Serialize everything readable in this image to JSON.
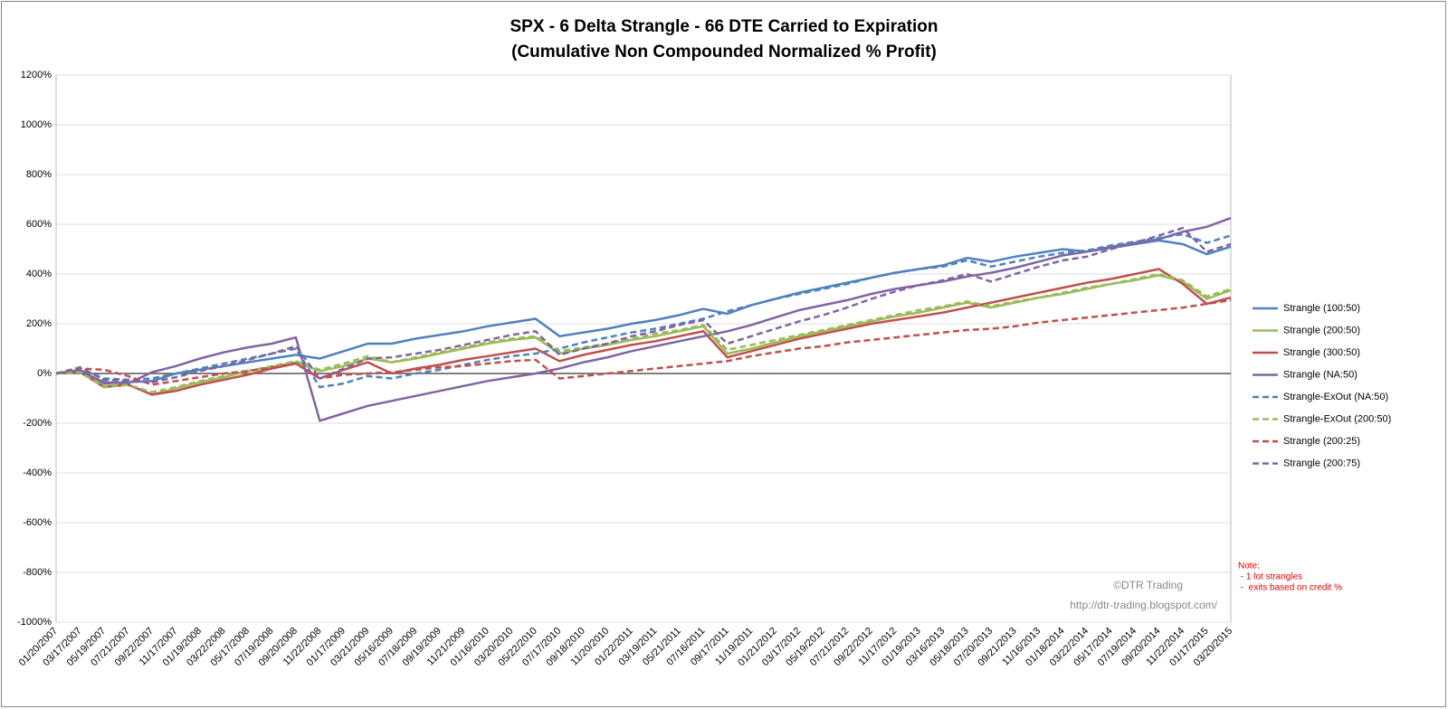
{
  "chart_data": {
    "type": "line",
    "title": [
      "SPX - 6 Delta Strangle - 66 DTE Carried to Expiration",
      "(Cumulative Non Compounded Normalized % Profit)"
    ],
    "categories": [
      "01/20/2007",
      "03/17/2007",
      "05/19/2007",
      "07/21/2007",
      "09/22/2007",
      "11/17/2007",
      "01/19/2008",
      "03/22/2008",
      "05/17/2008",
      "07/19/2008",
      "09/20/2008",
      "11/22/2008",
      "01/17/2009",
      "03/21/2009",
      "05/16/2009",
      "07/18/2009",
      "09/19/2009",
      "11/21/2009",
      "01/16/2010",
      "03/20/2010",
      "05/22/2010",
      "07/17/2010",
      "09/18/2010",
      "11/20/2010",
      "01/22/2011",
      "03/19/2011",
      "05/21/2011",
      "07/16/2011",
      "09/17/2011",
      "11/19/2011",
      "01/21/2012",
      "03/17/2012",
      "05/19/2012",
      "07/21/2012",
      "09/22/2012",
      "11/17/2012",
      "01/19/2013",
      "03/16/2013",
      "05/18/2013",
      "07/20/2013",
      "09/21/2013",
      "11/16/2013",
      "01/18/2014",
      "03/22/2014",
      "05/17/2014",
      "07/19/2014",
      "09/20/2014",
      "11/22/2014",
      "01/17/2015",
      "03/20/2015"
    ],
    "series": [
      {
        "name": "Strangle (100:50)",
        "color": "#4f81bd",
        "dashed": false,
        "values": [
          0,
          15,
          -40,
          -35,
          -30,
          0,
          15,
          30,
          45,
          60,
          75,
          60,
          90,
          120,
          120,
          140,
          155,
          170,
          190,
          205,
          220,
          150,
          165,
          180,
          200,
          215,
          235,
          260,
          240,
          275,
          300,
          325,
          345,
          365,
          385,
          405,
          420,
          435,
          465,
          450,
          470,
          485,
          500,
          490,
          505,
          520,
          535,
          520,
          480,
          510
        ]
      },
      {
        "name": "Strangle (200:50)",
        "color": "#9bbb59",
        "dashed": false,
        "values": [
          0,
          5,
          -50,
          -45,
          -85,
          -60,
          -35,
          -15,
          10,
          25,
          45,
          10,
          30,
          60,
          45,
          60,
          80,
          100,
          120,
          135,
          145,
          80,
          100,
          115,
          135,
          150,
          170,
          190,
          80,
          100,
          125,
          150,
          170,
          190,
          210,
          230,
          245,
          265,
          285,
          265,
          285,
          305,
          320,
          340,
          360,
          375,
          395,
          370,
          300,
          335
        ]
      },
      {
        "name": "Strangle (300:50)",
        "color": "#c0504d",
        "dashed": false,
        "values": [
          0,
          5,
          -55,
          -45,
          -85,
          -70,
          -45,
          -25,
          -5,
          20,
          40,
          -20,
          15,
          45,
          0,
          20,
          35,
          55,
          70,
          85,
          100,
          50,
          75,
          95,
          115,
          130,
          150,
          170,
          65,
          90,
          115,
          140,
          160,
          180,
          200,
          215,
          230,
          245,
          265,
          285,
          305,
          325,
          345,
          365,
          380,
          400,
          420,
          360,
          280,
          305
        ]
      },
      {
        "name": "Strangle (NA:50)",
        "color": "#8064a2",
        "dashed": false,
        "values": [
          0,
          10,
          -35,
          -40,
          5,
          30,
          60,
          85,
          105,
          120,
          145,
          -190,
          -160,
          -130,
          -110,
          -90,
          -70,
          -50,
          -30,
          -15,
          0,
          20,
          45,
          65,
          90,
          110,
          130,
          150,
          170,
          195,
          225,
          255,
          275,
          295,
          320,
          340,
          355,
          370,
          390,
          405,
          425,
          450,
          475,
          490,
          510,
          525,
          540,
          570,
          590,
          625
        ]
      },
      {
        "name": "Strangle-ExOut (NA:50)",
        "color": "#4f81bd",
        "dashed": true,
        "values": [
          0,
          20,
          -20,
          -25,
          -20,
          0,
          20,
          40,
          60,
          80,
          100,
          -55,
          -40,
          -10,
          -20,
          0,
          15,
          35,
          55,
          70,
          80,
          100,
          125,
          145,
          165,
          180,
          200,
          220,
          250,
          275,
          300,
          320,
          340,
          360,
          385,
          405,
          420,
          430,
          455,
          430,
          450,
          470,
          485,
          495,
          515,
          530,
          545,
          560,
          525,
          555
        ]
      },
      {
        "name": "Strangle-ExOut (200:50)",
        "color": "#9bbb59",
        "dashed": true,
        "values": [
          0,
          5,
          -55,
          -45,
          -75,
          -55,
          -30,
          -10,
          10,
          30,
          50,
          15,
          40,
          70,
          45,
          65,
          85,
          105,
          125,
          140,
          150,
          90,
          105,
          120,
          140,
          160,
          175,
          195,
          95,
          115,
          135,
          155,
          175,
          195,
          215,
          235,
          255,
          270,
          290,
          270,
          290,
          305,
          325,
          345,
          360,
          380,
          400,
          375,
          310,
          340
        ]
      },
      {
        "name": "Strangle (200:25)",
        "color": "#c0504d",
        "dashed": true,
        "values": [
          0,
          20,
          15,
          -10,
          -45,
          -30,
          -15,
          0,
          10,
          25,
          40,
          -20,
          -5,
          0,
          5,
          15,
          25,
          30,
          40,
          50,
          55,
          -20,
          -10,
          0,
          10,
          20,
          30,
          40,
          50,
          70,
          85,
          100,
          110,
          125,
          135,
          145,
          155,
          165,
          175,
          180,
          190,
          205,
          215,
          225,
          235,
          245,
          255,
          265,
          280,
          295
        ]
      },
      {
        "name": "Strangle (200:75)",
        "color": "#8064a2",
        "dashed": true,
        "values": [
          0,
          25,
          -25,
          -30,
          -35,
          -15,
          10,
          30,
          55,
          80,
          110,
          -20,
          20,
          60,
          65,
          80,
          95,
          115,
          135,
          155,
          170,
          75,
          100,
          120,
          150,
          170,
          195,
          215,
          120,
          150,
          180,
          210,
          235,
          265,
          300,
          330,
          355,
          375,
          400,
          370,
          400,
          430,
          455,
          470,
          500,
          525,
          555,
          585,
          490,
          520
        ]
      }
    ],
    "ylim": [
      -1000,
      1200
    ],
    "yticks": [
      {
        "value": -1000,
        "label": "-1000%"
      },
      {
        "value": -800,
        "label": "-800%"
      },
      {
        "value": -600,
        "label": "-600%"
      },
      {
        "value": -400,
        "label": "-400%"
      },
      {
        "value": -200,
        "label": "-200%"
      },
      {
        "value": 0,
        "label": "0%"
      },
      {
        "value": 200,
        "label": "200%"
      },
      {
        "value": 400,
        "label": "400%"
      },
      {
        "value": 600,
        "label": "600%"
      },
      {
        "value": 800,
        "label": "800%"
      },
      {
        "value": 1000,
        "label": "1000%"
      },
      {
        "value": 1200,
        "label": "1200%"
      }
    ],
    "grid": true,
    "legend": "right",
    "annotations": [
      "©DTR Trading",
      "http://dtr-trading.blogspot.com/"
    ],
    "note": [
      "Note:",
      " - 1 lot strangles",
      " -  exits based on credit %"
    ]
  }
}
